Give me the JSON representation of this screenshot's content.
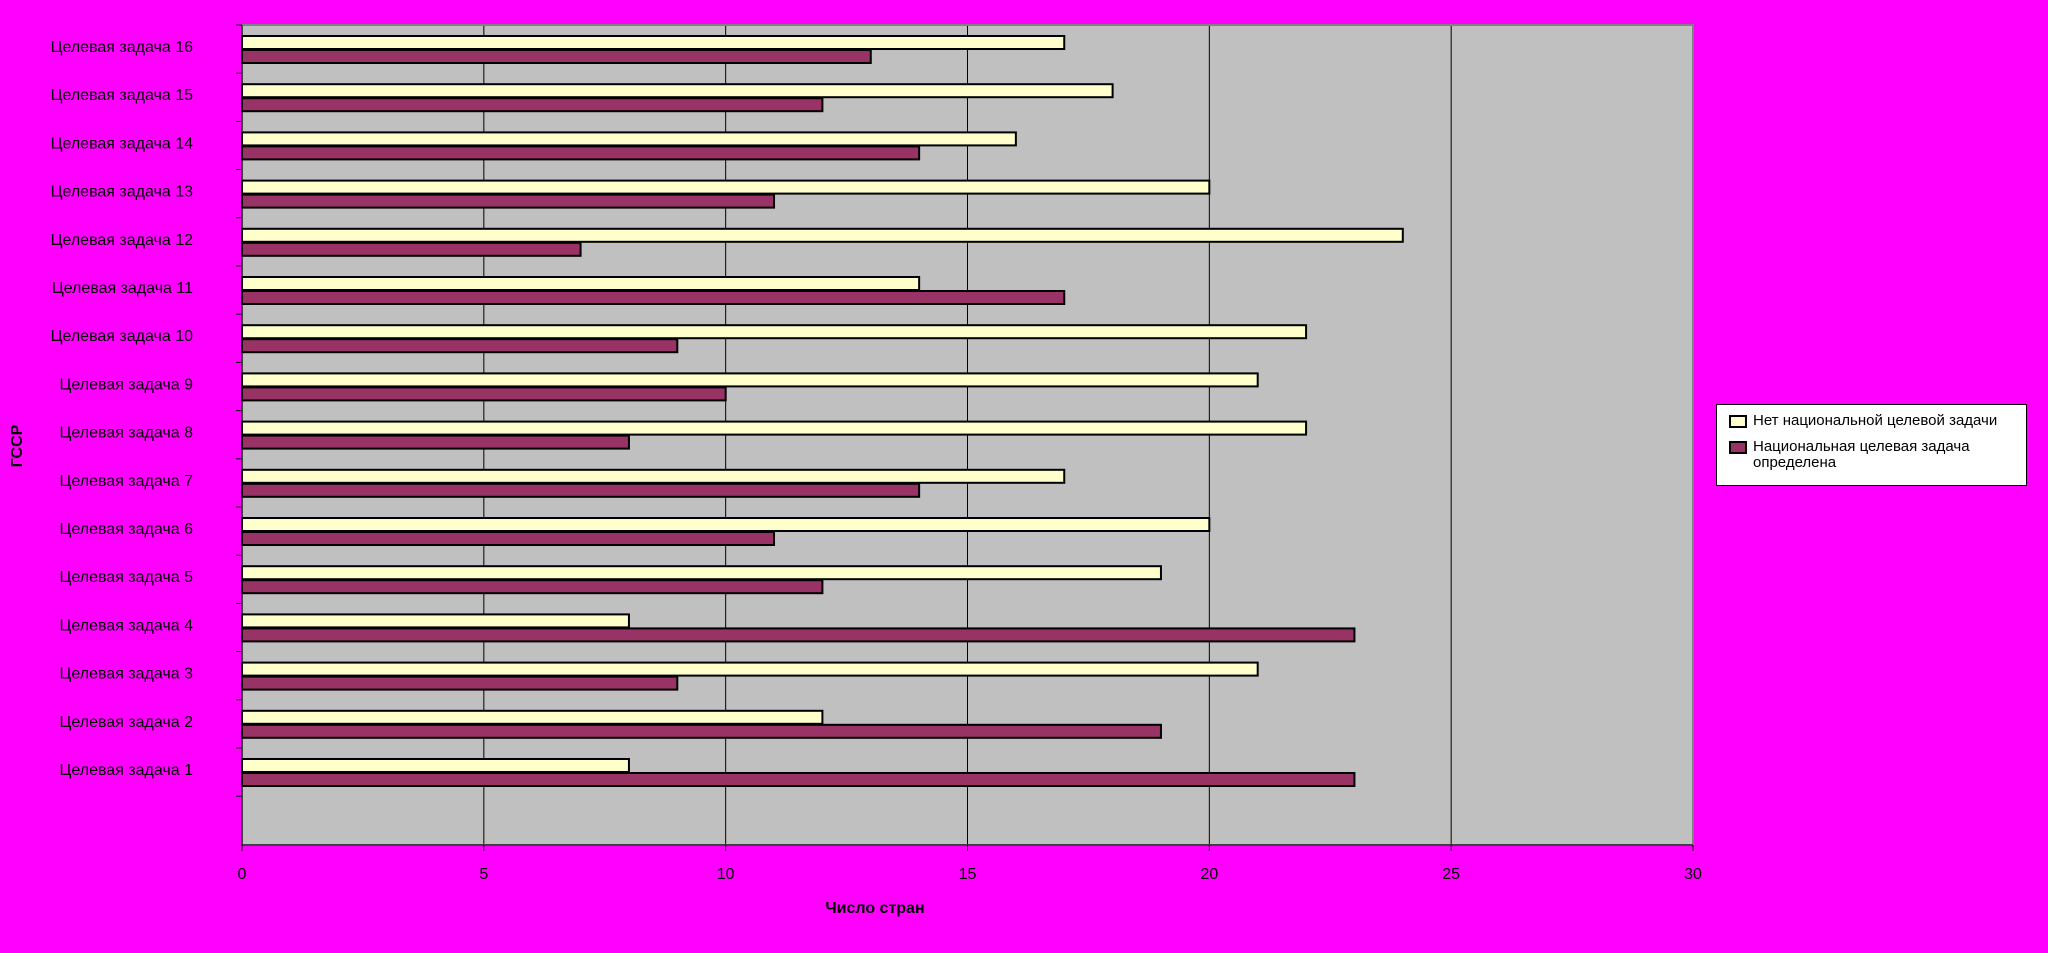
{
  "chart_data": {
    "type": "bar",
    "orientation": "horizontal",
    "title": "",
    "xlabel": "Число стран",
    "ylabel": "ГССР",
    "xlim": [
      0,
      30
    ],
    "xticks": [
      0,
      5,
      10,
      15,
      20,
      25,
      30
    ],
    "grid": "vertical",
    "legend_position": "right",
    "plot_background": "#C0C0C0",
    "page_background": "#FF00FF",
    "categories": [
      "Целевая задача 1",
      "Целевая задача 2",
      "Целевая задача 3",
      "Целевая задача 4",
      "Целевая задача 5",
      "Целевая задача 6",
      "Целевая задача 7",
      "Целевая задача 8",
      "Целевая задача 9",
      "Целевая задача 10",
      "Целевая задача 11",
      "Целевая задача 12",
      "Целевая задача 13",
      "Целевая задача 14",
      "Целевая задача 15",
      "Целевая задача 16"
    ],
    "series": [
      {
        "name": "Нет национальной целевой задачи",
        "color": "#FFFFCC",
        "values": [
          8,
          12,
          21,
          8,
          19,
          20,
          17,
          22,
          21,
          22,
          14,
          24,
          20,
          16,
          18,
          17
        ]
      },
      {
        "name": "Национальная целевая задача определена",
        "color": "#993366",
        "values": [
          23,
          19,
          9,
          23,
          12,
          11,
          14,
          8,
          10,
          9,
          17,
          7,
          11,
          14,
          12,
          13
        ]
      }
    ]
  }
}
